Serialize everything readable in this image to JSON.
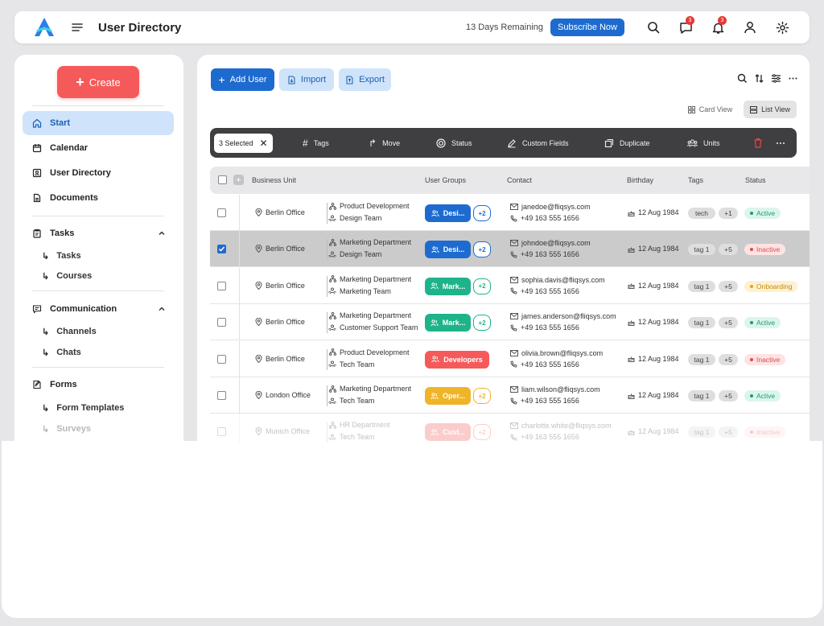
{
  "header": {
    "title": "User Directory",
    "remaining": "13 Days Remaining",
    "subscribe_label": "Subscribe Now",
    "chat_badge": "3",
    "notif_badge": "3"
  },
  "sidebar": {
    "create_label": "Create",
    "items": [
      {
        "label": "Start"
      },
      {
        "label": "Calendar"
      },
      {
        "label": "User Directory"
      },
      {
        "label": "Documents"
      },
      {
        "label": "Tasks"
      },
      {
        "label": "Tasks"
      },
      {
        "label": "Courses"
      },
      {
        "label": "Communication"
      },
      {
        "label": "Channels"
      },
      {
        "label": "Chats"
      },
      {
        "label": "Forms"
      },
      {
        "label": "Form Templates"
      },
      {
        "label": "Surveys"
      }
    ]
  },
  "toolbar": {
    "add_user": "Add User",
    "import": "Import",
    "export": "Export",
    "card_view": "Card View",
    "list_view": "List View"
  },
  "actionbar": {
    "selected": "3 Selected",
    "tags": "Tags",
    "move": "Move",
    "status": "Status",
    "custom_fields": "Custom Fields",
    "duplicate": "Duplicate",
    "units": "Units"
  },
  "table": {
    "headers": {
      "business_unit": "Business Unit",
      "user_groups": "User Groups",
      "contact": "Contact",
      "birthday": "Birthday",
      "tags": "Tags",
      "status": "Status"
    },
    "rows": [
      {
        "office": "Berlin Office",
        "dept": "Product Development",
        "team": "Design Team",
        "group": "Desi...",
        "group_color": "#1e6bd0",
        "more": "+2",
        "email": "janedoe@fliqsys.com",
        "phone": "+49 163 555 1656",
        "birthday": "12 Aug 1984",
        "tag": "tech",
        "tag_more": "+1",
        "status": "Active"
      },
      {
        "office": "Berlin Office",
        "dept": "Marketing Department",
        "team": "Design Team",
        "group": "Desi...",
        "group_color": "#1e6bd0",
        "more": "+2",
        "email": "johndoe@fliqsys.com",
        "phone": "+49 163 555 1656",
        "birthday": "12 Aug 1984",
        "tag": "tag 1",
        "tag_more": "+5",
        "status": "Inactive"
      },
      {
        "office": "Berlin Office",
        "dept": "Marketing Department",
        "team": "Marketing Team",
        "group": "Mark...",
        "group_color": "#1fb38a",
        "more": "+2",
        "email": "sophia.davis@fliqsys.com",
        "phone": "+49 163 555 1656",
        "birthday": "12 Aug 1984",
        "tag": "tag 1",
        "tag_more": "+5",
        "status": "Onboarding"
      },
      {
        "office": "Berlin Office",
        "dept": "Marketing Department",
        "team": "Customer Support Team",
        "group": "Mark...",
        "group_color": "#1fb38a",
        "more": "+2",
        "email": "james.anderson@fliqsys.com",
        "phone": "+49 163 555 1656",
        "birthday": "12 Aug 1984",
        "tag": "tag 1",
        "tag_more": "+5",
        "status": "Active"
      },
      {
        "office": "Berlin Office",
        "dept": "Product Development",
        "team": "Tech Team",
        "group": "Developers",
        "group_color": "#f55a5a",
        "more": "",
        "email": "olivia.brown@fliqsys.com",
        "phone": "+49 163 555 1656",
        "birthday": "12 Aug 1984",
        "tag": "tag 1",
        "tag_more": "+5",
        "status": "Inactive"
      },
      {
        "office": "London Office",
        "dept": "Marketing Department",
        "team": "Tech Team",
        "group": "Oper...",
        "group_color": "#f0b429",
        "more": "+2",
        "email": "liam.wilson@fliqsys.com",
        "phone": "+49 163 555 1656",
        "birthday": "12 Aug 1984",
        "tag": "tag 1",
        "tag_more": "+5",
        "status": "Active"
      },
      {
        "office": "Munich Office",
        "dept": "HR Department",
        "team": "Tech Team",
        "group": "Cust...",
        "group_color": "#f55a5a",
        "more": "+2",
        "email": "charlotte.white@fliqsys.com",
        "phone": "+49 163 555 1656",
        "birthday": "12 Aug 1984",
        "tag": "tag 1",
        "tag_more": "+5",
        "status": "Inactive"
      }
    ]
  }
}
